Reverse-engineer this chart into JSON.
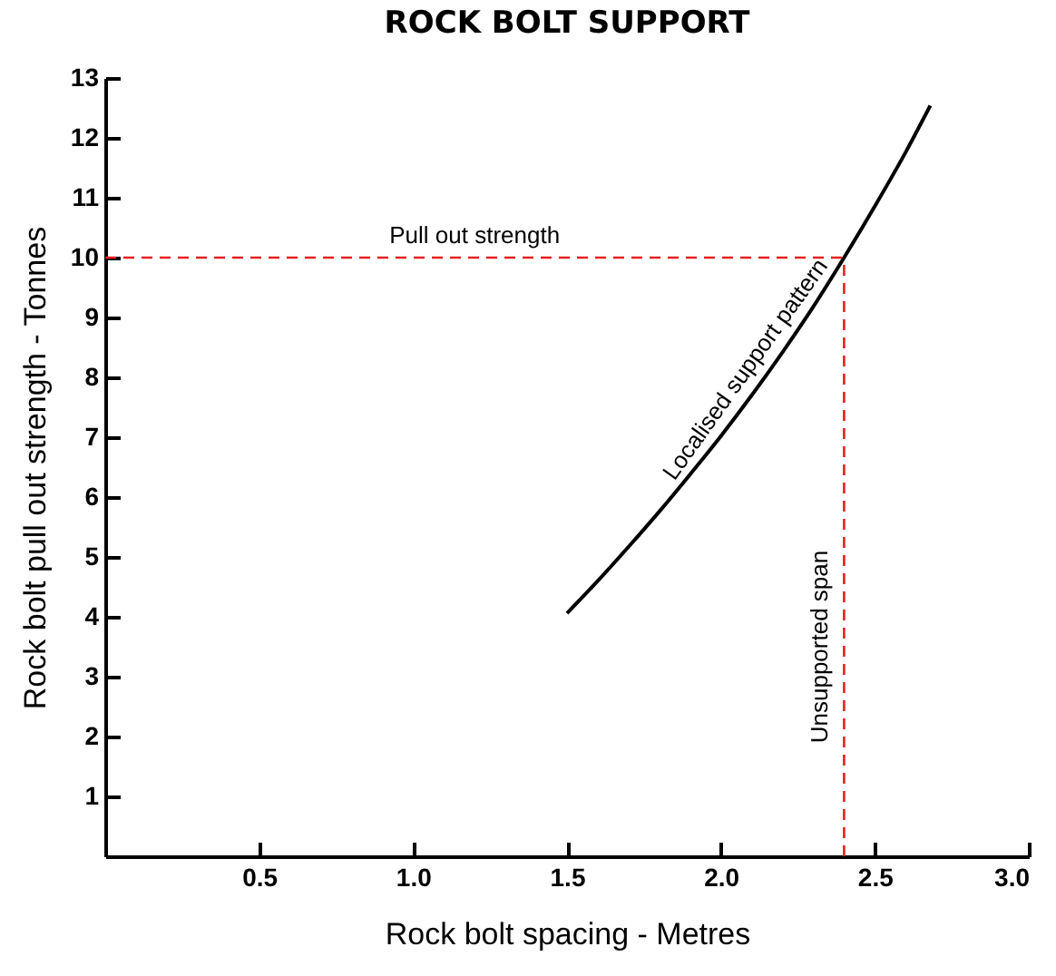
{
  "chart_data": {
    "type": "line",
    "title": "ROCK BOLT SUPPORT",
    "xlabel": "Rock bolt spacing - Metres",
    "ylabel": "Rock bolt pull out strength - Tonnes",
    "x": [
      1.5,
      1.6,
      1.7,
      1.8,
      1.9,
      2.0,
      2.1,
      2.2,
      2.3,
      2.4,
      2.5,
      2.6,
      2.68
    ],
    "series": [
      {
        "name": "Localised support pattern",
        "color": "#000000",
        "values": [
          4.06,
          4.6,
          5.17,
          5.76,
          6.38,
          7.02,
          7.7,
          8.42,
          9.18,
          10.0,
          10.86,
          11.76,
          12.54
        ]
      }
    ],
    "xlim": [
      0,
      3.0
    ],
    "ylim": [
      0,
      13
    ],
    "xticks": [
      {
        "value": 0.5,
        "label": "0.5"
      },
      {
        "value": 1,
        "label": "1.0"
      },
      {
        "value": 1.5,
        "label": "1.5"
      },
      {
        "value": 2,
        "label": "2.0"
      },
      {
        "value": 2.5,
        "label": "2.5"
      },
      {
        "value": 3,
        "label": "3.0"
      }
    ],
    "yticks": [
      1,
      2,
      3,
      4,
      5,
      6,
      7,
      8,
      9,
      10,
      11,
      12,
      13
    ],
    "ref_lines": [
      {
        "axis": "y",
        "value": 10,
        "label": "Pull out strength",
        "color": "#e52020",
        "line_style": "dashed"
      },
      {
        "axis": "x",
        "value": 2.4,
        "label": "Unsupported span",
        "color": "#e52020",
        "line_style": "dashed"
      }
    ],
    "grid": false,
    "marker": "none",
    "line_style": "solid"
  }
}
